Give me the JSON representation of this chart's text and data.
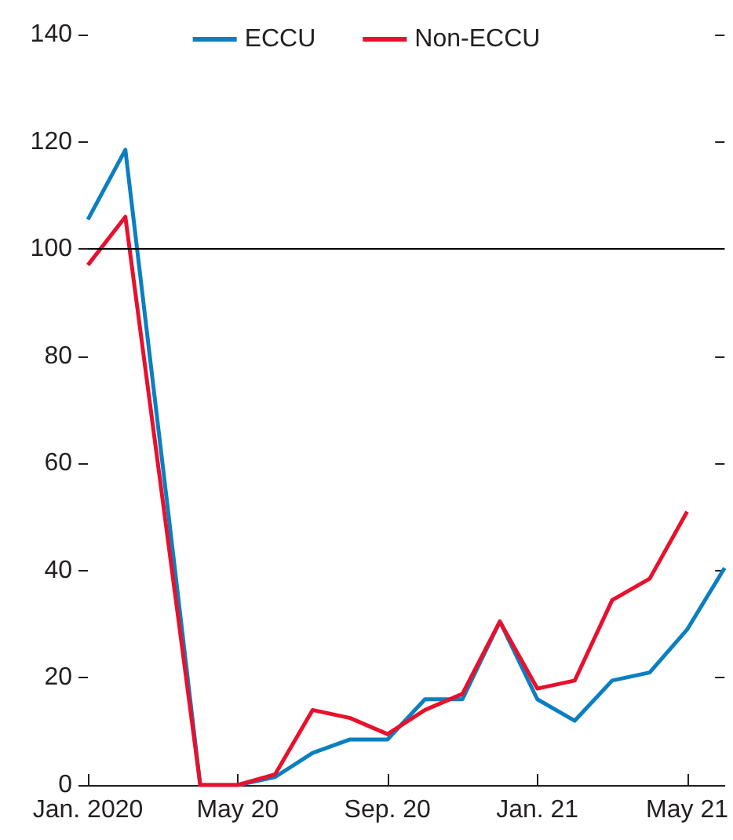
{
  "chart_data": {
    "type": "line",
    "categories": [
      "Jan. 2020",
      null,
      null,
      null,
      "May 20",
      null,
      null,
      null,
      "Sep. 20",
      null,
      null,
      null,
      "Jan. 21",
      null,
      null,
      null,
      "May 21",
      null
    ],
    "series": [
      {
        "name": "ECCU",
        "color": "#0a7fc1",
        "values": [
          105.5,
          118.5,
          59.5,
          0,
          0,
          1.5,
          6,
          8.5,
          8.5,
          16,
          16,
          30.5,
          16,
          12,
          19.5,
          21,
          29,
          40.5
        ]
      },
      {
        "name": "Non-ECCU",
        "color": "#e8112d",
        "values": [
          97,
          106,
          53,
          0,
          0,
          2,
          14,
          12.5,
          9.5,
          14,
          17,
          30.5,
          18,
          19.5,
          34.5,
          38.5,
          51,
          null
        ]
      }
    ],
    "ylim": [
      0,
      140
    ],
    "yticks": [
      0,
      20,
      40,
      60,
      80,
      100,
      120,
      140
    ],
    "ref_lines": [
      {
        "axis": "y",
        "value": 100,
        "color": "#000000"
      }
    ],
    "grid": false,
    "legend": "top",
    "marker": "none",
    "line_style": "solid"
  }
}
